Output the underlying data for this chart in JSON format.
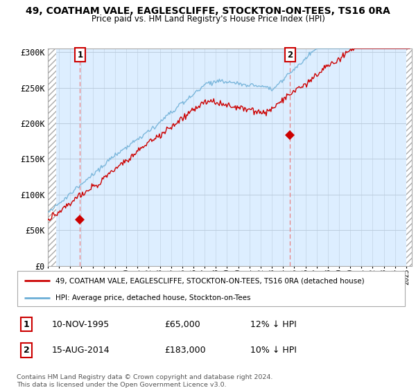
{
  "title": "49, COATHAM VALE, EAGLESCLIFFE, STOCKTON-ON-TEES, TS16 0RA",
  "subtitle": "Price paid vs. HM Land Registry's House Price Index (HPI)",
  "ylim": [
    0,
    300000
  ],
  "yticks": [
    0,
    50000,
    100000,
    150000,
    200000,
    250000,
    300000
  ],
  "ytick_labels": [
    "£0",
    "£50K",
    "£100K",
    "£150K",
    "£200K",
    "£250K",
    "£300K"
  ],
  "sale1_date_num": 1995.87,
  "sale1_price": 65000,
  "sale1_label": "1",
  "sale2_date_num": 2014.62,
  "sale2_price": 183000,
  "sale2_label": "2",
  "hpi_color": "#6baed6",
  "price_color": "#cc0000",
  "dashed_line_color": "#e88080",
  "marker_color": "#cc0000",
  "bg_color": "#ddeeff",
  "legend_line1": "49, COATHAM VALE, EAGLESCLIFFE, STOCKTON-ON-TEES, TS16 0RA (detached house)",
  "legend_line2": "HPI: Average price, detached house, Stockton-on-Tees",
  "annotation1_date": "10-NOV-1995",
  "annotation1_price": "£65,000",
  "annotation1_hpi": "12% ↓ HPI",
  "annotation2_date": "15-AUG-2014",
  "annotation2_price": "£183,000",
  "annotation2_hpi": "10% ↓ HPI",
  "footnote": "Contains HM Land Registry data © Crown copyright and database right 2024.\nThis data is licensed under the Open Government Licence v3.0.",
  "xstart": 1993,
  "xend": 2025.5,
  "xtick_years": [
    1993,
    1994,
    1995,
    1996,
    1997,
    1998,
    1999,
    2000,
    2001,
    2002,
    2003,
    2004,
    2005,
    2006,
    2007,
    2008,
    2009,
    2010,
    2011,
    2012,
    2013,
    2014,
    2015,
    2016,
    2017,
    2018,
    2019,
    2020,
    2021,
    2022,
    2023,
    2024,
    2025
  ]
}
